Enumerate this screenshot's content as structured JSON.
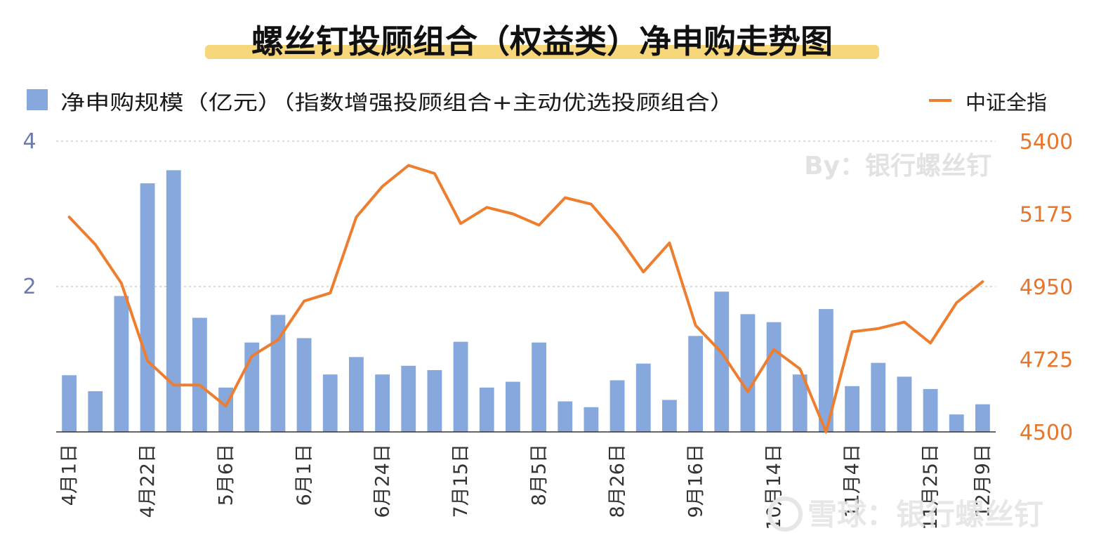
{
  "chart_data": {
    "type": "bar",
    "title": "螺丝钉投顾组合（权益类）净申购走势图",
    "watermark": "By：银行螺丝钉",
    "source_mark": "雪球：银行螺丝钉",
    "legend": {
      "placement": "top",
      "bar_label": "净申购规模（亿元）（指数增强投顾组合+主动优选投顾组合）",
      "line_label": "中证全指"
    },
    "categories": [
      "4月1日",
      "",
      "",
      "4月22日",
      "",
      "",
      "5月6日",
      "",
      "",
      "6月1日",
      "",
      "",
      "6月24日",
      "",
      "",
      "7月15日",
      "",
      "",
      "8月5日",
      "",
      "",
      "8月26日",
      "",
      "",
      "9月16日",
      "",
      "",
      "10月14日",
      "",
      "",
      "11月4日",
      "",
      "",
      "11月25日",
      "",
      "12月9日"
    ],
    "x_tick_labels": [
      "4月1日",
      "4月22日",
      "5月6日",
      "6月1日",
      "6月24日",
      "7月15日",
      "8月5日",
      "8月26日",
      "9月16日",
      "10月14日",
      "11月4日",
      "11月25日",
      "12月9日"
    ],
    "series": [
      {
        "name": "净申购规模（亿元）（指数增强投顾组合+主动优选投顾组合）",
        "type": "bar",
        "axis": "left",
        "color": "#86a8dc",
        "values": [
          0.78,
          0.56,
          1.87,
          3.42,
          3.6,
          1.57,
          0.61,
          1.23,
          1.61,
          1.29,
          0.79,
          1.03,
          0.79,
          0.91,
          0.85,
          1.24,
          0.61,
          0.69,
          1.23,
          0.42,
          0.34,
          0.71,
          0.94,
          0.44,
          1.32,
          1.93,
          1.62,
          1.51,
          0.79,
          1.69,
          0.63,
          0.95,
          0.76,
          0.59,
          0.24,
          0.38
        ]
      },
      {
        "name": "中证全指",
        "type": "line",
        "axis": "right",
        "color": "#ee7d2f",
        "values": [
          5165,
          5080,
          4960,
          4720,
          4645,
          4645,
          4580,
          4735,
          4785,
          4905,
          4930,
          5165,
          5260,
          5325,
          5300,
          5145,
          5195,
          5175,
          5140,
          5225,
          5205,
          5110,
          4995,
          5085,
          4830,
          4745,
          4625,
          4755,
          4695,
          4500,
          4810,
          4820,
          4840,
          4775,
          4900,
          4965
        ]
      }
    ],
    "y_left": {
      "ticks": [
        "2",
        "4"
      ],
      "ylim": [
        0,
        4
      ],
      "color": "#6a7ab0"
    },
    "y_right": {
      "ticks": [
        "4500",
        "4725",
        "4950",
        "5175",
        "5400"
      ],
      "ylim": [
        4500,
        5400
      ],
      "color": "#e9752a"
    },
    "grid": true,
    "title_highlight_color": "#f6d77c"
  }
}
